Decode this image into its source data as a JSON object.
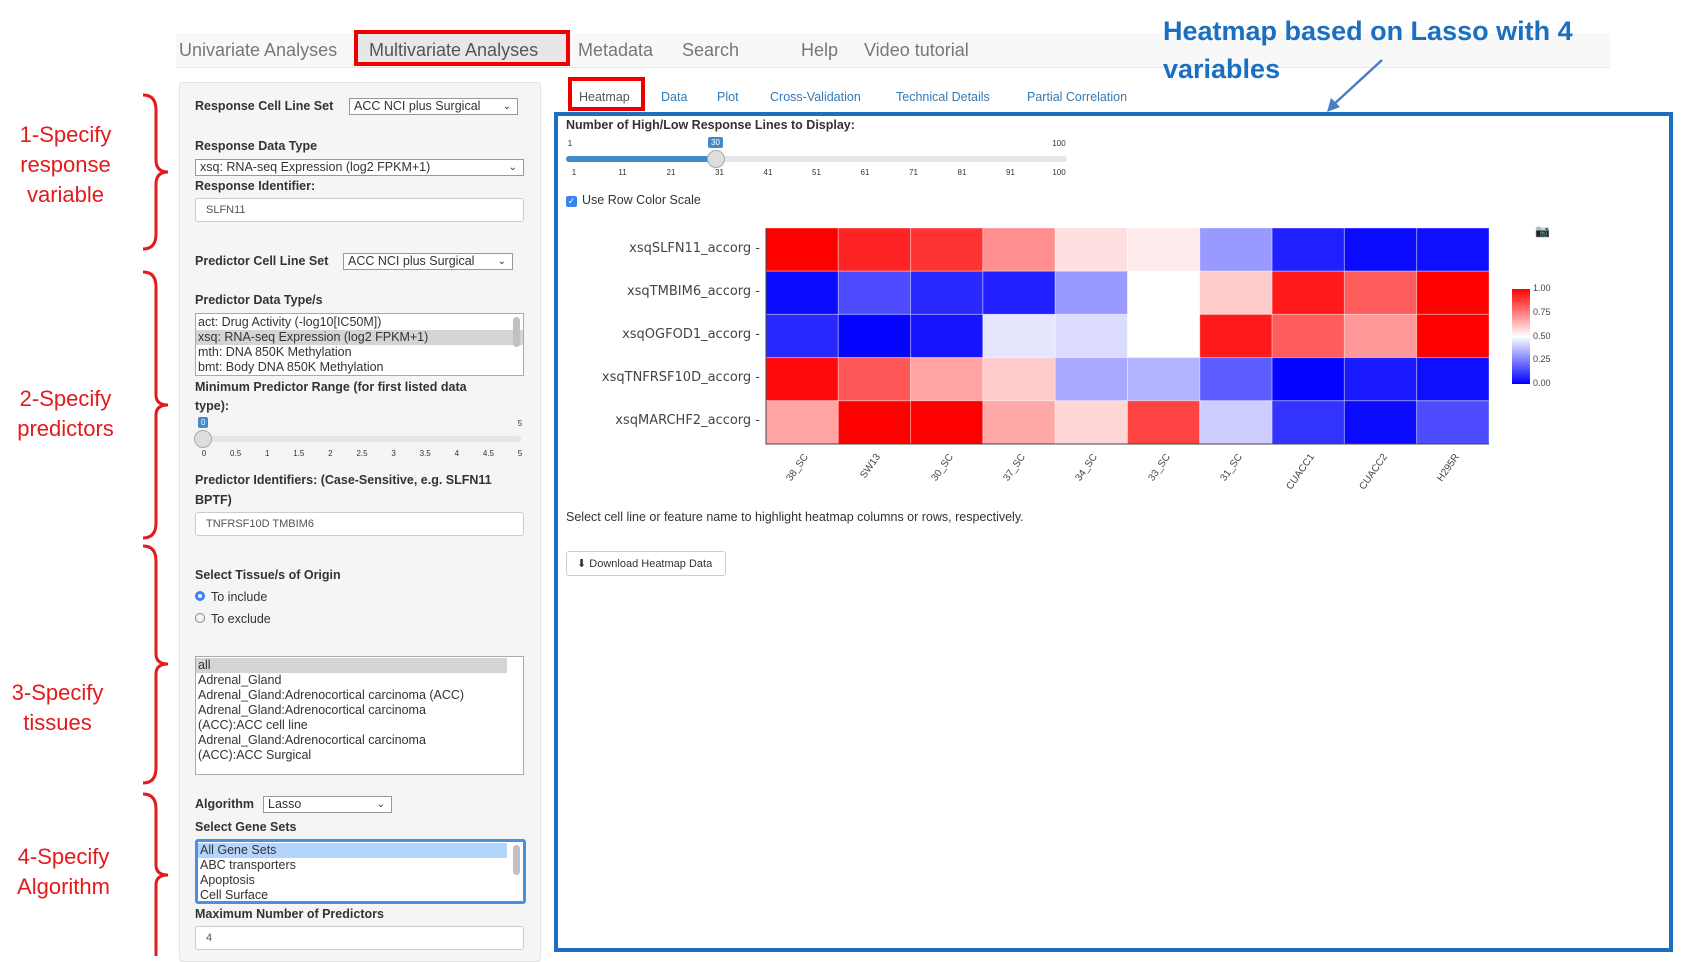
{
  "nav": {
    "items": [
      "Univariate Analyses",
      "Multivariate Analyses",
      "Metadata",
      "Search",
      "Help",
      "Video tutorial"
    ],
    "active": "Multivariate Analyses"
  },
  "left": {
    "response_cell_line_set_label": "Response Cell Line Set",
    "response_cell_line_set": "ACC NCI plus Surgical",
    "response_data_type_label": "Response Data Type",
    "response_data_type": "xsq: RNA-seq Expression (log2 FPKM+1)",
    "response_identifier_label": "Response Identifier:",
    "response_identifier": "SLFN11",
    "predictor_cell_line_set_label": "Predictor Cell Line Set",
    "predictor_cell_line_set": "ACC NCI plus Surgical",
    "predictor_data_types_label": "Predictor Data Type/s",
    "predictor_data_types": [
      "act: Drug Activity (-log10[IC50M])",
      "xsq: RNA-seq Expression (log2 FPKM+1)",
      "mth: DNA 850K Methylation",
      "bmt: Body DNA 850K Methylation"
    ],
    "min_range_label1": "Minimum Predictor Range (for first listed data",
    "min_range_label2": "type):",
    "min_range": {
      "value": "0",
      "min": "0",
      "max": "5",
      "ticks": [
        "0",
        "0.5",
        "1",
        "1.5",
        "2",
        "2.5",
        "3",
        "3.5",
        "4",
        "4.5",
        "5"
      ]
    },
    "predictor_ids_label1": "Predictor Identifiers: (Case-Sensitive, e.g. SLFN11",
    "predictor_ids_label2": "BPTF)",
    "predictor_ids": "TNFRSF10D TMBIM6",
    "tissue_label": "Select Tissue/s of Origin",
    "include": "To include",
    "exclude": "To exclude",
    "tissue_mode": "include",
    "tissues": [
      "all",
      "Adrenal_Gland",
      "Adrenal_Gland:Adrenocortical carcinoma (ACC)",
      "Adrenal_Gland:Adrenocortical carcinoma",
      "(ACC):ACC cell line",
      "Adrenal_Gland:Adrenocortical carcinoma",
      "(ACC):ACC Surgical"
    ],
    "algorithm_label": "Algorithm",
    "algorithm": "Lasso",
    "gene_sets_label": "Select Gene Sets",
    "gene_sets": [
      "All Gene Sets",
      "ABC transporters",
      "Apoptosis",
      "Cell Surface"
    ],
    "max_predictors_label": "Maximum Number of Predictors",
    "max_predictors": "4"
  },
  "tabs": [
    "Heatmap",
    "Data",
    "Plot",
    "Cross-Validation",
    "Technical Details",
    "Partial Correlation"
  ],
  "active_tab": "Heatmap",
  "main": {
    "lines_label": "Number of High/Low Response Lines to Display:",
    "lines_slider": {
      "value": "30",
      "min": "1",
      "max": "100",
      "ticks": [
        "1",
        "11",
        "21",
        "31",
        "41",
        "51",
        "61",
        "71",
        "81",
        "91",
        "100"
      ]
    },
    "row_color_scale": "Use Row Color Scale",
    "row_color_scale_checked": true,
    "hint": "Select cell line or feature name to highlight heatmap columns or rows, respectively.",
    "download": "Download Heatmap Data"
  },
  "chart_data": {
    "type": "heatmap",
    "rows": [
      "xsqSLFN11_accorg",
      "xsqTMBIM6_accorg",
      "xsqOGFOD1_accorg",
      "xsqTNFRSF10D_accorg",
      "xsqMARCHF2_accorg"
    ],
    "columns": [
      "38_SC",
      "SW13",
      "30_SC",
      "37_SC",
      "34_SC",
      "33_SC",
      "31_SC",
      "CUACC1",
      "CUACC2",
      "H295R"
    ],
    "values": [
      [
        1.0,
        0.93,
        0.9,
        0.72,
        0.56,
        0.54,
        0.3,
        0.06,
        0.02,
        0.03
      ],
      [
        0.02,
        0.15,
        0.08,
        0.06,
        0.3,
        0.5,
        0.6,
        0.95,
        0.82,
        1.0
      ],
      [
        0.08,
        0.01,
        0.04,
        0.45,
        0.43,
        0.5,
        0.95,
        0.82,
        0.7,
        1.0
      ],
      [
        0.98,
        0.83,
        0.68,
        0.6,
        0.33,
        0.35,
        0.18,
        0.01,
        0.05,
        0.03
      ],
      [
        0.68,
        1.0,
        1.0,
        0.67,
        0.58,
        0.87,
        0.4,
        0.1,
        0.02,
        0.15
      ]
    ],
    "colorscale": {
      "min_color": "#0000ff",
      "mid_color": "#ffffff",
      "max_color": "#ff0000"
    },
    "colorbar_ticks": [
      "1.00",
      "0.75",
      "0.50",
      "0.25",
      "0.00"
    ],
    "zlim": [
      0,
      1
    ]
  },
  "annotations": {
    "a1": [
      "1-Specify",
      "response",
      "variable"
    ],
    "a2": [
      "2-Specify",
      "predictors"
    ],
    "a3": [
      "3-Specify",
      "tissues"
    ],
    "a4": [
      "4-Specify",
      "Algorithm"
    ],
    "heatmap_note": [
      "Heatmap based on Lasso with 4",
      "variables"
    ],
    "annotation_color": "#e41a1c",
    "note_color": "#1a6fc1"
  }
}
